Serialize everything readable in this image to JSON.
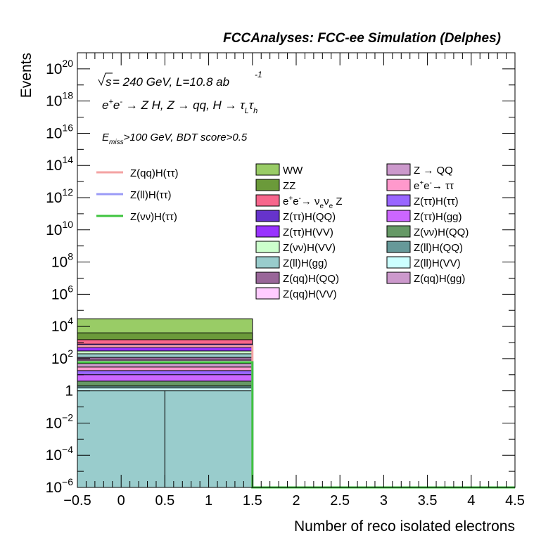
{
  "chart_data": {
    "type": "stacked-histogram",
    "title": "FCCAnalyses: FCC-ee Simulation (Delphes)",
    "xlabel": "Number of reco isolated electrons",
    "ylabel": "Events",
    "xlim": [
      -0.5,
      4.5
    ],
    "ylim": [
      1e-06,
      1e+21
    ],
    "yscale": "log",
    "grid": false,
    "x_ticks": [
      "−0.5",
      "0",
      "0.5",
      "1",
      "1.5",
      "2",
      "2.5",
      "3",
      "3.5",
      "4",
      "4.5"
    ],
    "y_ticks": [
      {
        "base": "10",
        "exp": "−6",
        "value": 1e-06
      },
      {
        "base": "10",
        "exp": "−4",
        "value": 0.0001
      },
      {
        "base": "10",
        "exp": "−2",
        "value": 0.01
      },
      {
        "base": "1",
        "exp": "",
        "value": 1
      },
      {
        "base": "10",
        "exp": "2",
        "value": 100.0
      },
      {
        "base": "10",
        "exp": "4",
        "value": 10000.0
      },
      {
        "base": "10",
        "exp": "6",
        "value": 1000000.0
      },
      {
        "base": "10",
        "exp": "8",
        "value": 100000000.0
      },
      {
        "base": "10",
        "exp": "10",
        "value": 10000000000.0
      },
      {
        "base": "10",
        "exp": "12",
        "value": 1000000000000.0
      },
      {
        "base": "10",
        "exp": "14",
        "value": 100000000000000.0
      },
      {
        "base": "10",
        "exp": "16",
        "value": 1e+16
      },
      {
        "base": "10",
        "exp": "18",
        "value": 1e+18
      },
      {
        "base": "10",
        "exp": "20",
        "value": 1e+20
      }
    ],
    "annotations": {
      "energy": {
        "prefix": "s",
        "text": " = 240 GeV, L=10.8 ab",
        "sup": "-1"
      },
      "process": {
        "text": "e+e- → Z H, Z → qq, H → τLτh"
      },
      "cuts": {
        "main": "E",
        "sub": "miss",
        "rest": ">100 GeV, BDT score>0.5"
      }
    },
    "signals": [
      {
        "name": "Z(qq)H(ττ)",
        "color": "#f4a3a3",
        "bins": [
          {
            "x0": -0.5,
            "x1": 1.5,
            "y": 600
          }
        ]
      },
      {
        "name": "Z(ll)H(ττ)",
        "color": "#9b9bf7",
        "bins": [
          {
            "x0": -0.5,
            "x1": 1.5,
            "y": 60
          }
        ]
      },
      {
        "name": "Z(νν)H(ττ)",
        "color": "#3fc43f",
        "bins": [
          {
            "x0": -0.5,
            "x1": 1.5,
            "y": 60
          }
        ]
      }
    ],
    "stack_tops": [
      {
        "name": "WW",
        "color": "#99cc66",
        "bins": [
          {
            "x0": -0.5,
            "x1": 1.5,
            "y": 30000
          }
        ]
      },
      {
        "name": "ZZ",
        "color": "#6b9a3a",
        "bins": [
          {
            "x0": -0.5,
            "x1": 1.5,
            "y": 4000
          }
        ]
      },
      {
        "name": "e+e-→ νeνe Z",
        "color": "#f7668c",
        "bins": [
          {
            "x0": -0.5,
            "x1": 1.5,
            "y": 1500
          }
        ]
      },
      {
        "name": "Z(ττ)H(QQ)",
        "color": "#6633cc",
        "bins": [
          {
            "x0": -0.5,
            "x1": 1.5,
            "y": 800
          }
        ]
      },
      {
        "name": "Z(ττ)H(VV)",
        "color": "#9933ff",
        "bins": [
          {
            "x0": -0.5,
            "x1": 1.5,
            "y": 500
          }
        ]
      },
      {
        "name": "Z(νν)H(VV)",
        "color": "#ccffcc",
        "bins": [
          {
            "x0": -0.5,
            "x1": 1.5,
            "y": 300
          }
        ]
      },
      {
        "name": "Z(ll)H(gg)",
        "color": "#99cccc",
        "bins": [
          {
            "x0": -0.5,
            "x1": 1.5,
            "y": 200
          }
        ]
      },
      {
        "name": "Z(qq)H(QQ)",
        "color": "#996699",
        "bins": [
          {
            "x0": -0.5,
            "x1": 1.5,
            "y": 120
          }
        ]
      },
      {
        "name": "Z(qq)H(VV)",
        "color": "#ffccff",
        "bins": [
          {
            "x0": -0.5,
            "x1": 1.5,
            "y": 80
          }
        ]
      },
      {
        "name": "Z → QQ",
        "color": "#cc99cc",
        "bins": [
          {
            "x0": -0.5,
            "x1": 1.5,
            "y": 50
          }
        ]
      },
      {
        "name": "e+e-→ ττ",
        "color": "#ff99cc",
        "bins": [
          {
            "x0": -0.5,
            "x1": 1.5,
            "y": 30
          }
        ]
      },
      {
        "name": "Z(ττ)H(ττ)",
        "color": "#9966ff",
        "bins": [
          {
            "x0": -0.5,
            "x1": 1.5,
            "y": 18
          }
        ]
      },
      {
        "name": "Z(ττ)H(gg)",
        "color": "#cc66ff",
        "bins": [
          {
            "x0": -0.5,
            "x1": 1.5,
            "y": 10
          }
        ]
      },
      {
        "name": "Z(νν)H(QQ)",
        "color": "#669966",
        "bins": [
          {
            "x0": -0.5,
            "x1": 1.5,
            "y": 4
          }
        ]
      },
      {
        "name": "Z(ll)H(QQ)",
        "color": "#669999",
        "bins": [
          {
            "x0": -0.5,
            "x1": 1.5,
            "y": 2
          }
        ]
      },
      {
        "name": "Z(ll)H(VV)",
        "color": "#ccffff",
        "bins": [
          {
            "x0": -0.5,
            "x1": 1.5,
            "y": 1.5
          }
        ]
      },
      {
        "name": "Z(qq)H(gg)",
        "color": "#cc99cc",
        "bins": [
          {
            "x0": 0.5,
            "x1": 1.5,
            "y": 0.15
          }
        ]
      },
      {
        "name": "Z(ll)H(gg) base",
        "color": "#99cccc",
        "bins": [
          {
            "x0": -0.5,
            "x1": 0.5,
            "y": 1
          },
          {
            "x0": 0.5,
            "x1": 1.5,
            "y": 1
          }
        ]
      }
    ],
    "legend_signals": [
      "Z(qq)H(ττ)",
      "Z(ll)H(ττ)",
      "Z(νν)H(ττ)"
    ],
    "legend_backgrounds_col1": [
      {
        "label": "WW",
        "color": "#99cc66"
      },
      {
        "label": "ZZ",
        "color": "#6b9a3a"
      },
      {
        "label": "e+e-→ νeνe Z",
        "color": "#f7668c",
        "rich": "nunuZ"
      },
      {
        "label": "Z(ττ)H(QQ)",
        "color": "#6633cc"
      },
      {
        "label": "Z(ττ)H(VV)",
        "color": "#9933ff"
      },
      {
        "label": "Z(νν)H(VV)",
        "color": "#ccffcc"
      },
      {
        "label": "Z(ll)H(gg)",
        "color": "#99cccc"
      },
      {
        "label": "Z(qq)H(QQ)",
        "color": "#996699"
      },
      {
        "label": "Z(qq)H(VV)",
        "color": "#ffccff"
      }
    ],
    "legend_backgrounds_col2": [
      {
        "label": "Z → QQ",
        "color": "#cc99cc"
      },
      {
        "label": "e+e-→ ττ",
        "color": "#ff99cc",
        "rich": "tautau"
      },
      {
        "label": "Z(ττ)H(ττ)",
        "color": "#9966ff"
      },
      {
        "label": "Z(ττ)H(gg)",
        "color": "#cc66ff"
      },
      {
        "label": "Z(νν)H(QQ)",
        "color": "#669966"
      },
      {
        "label": "Z(ll)H(QQ)",
        "color": "#669999"
      },
      {
        "label": "Z(ll)H(VV)",
        "color": "#ccffff"
      },
      {
        "label": "Z(qq)H(gg)",
        "color": "#cc99cc"
      }
    ]
  }
}
